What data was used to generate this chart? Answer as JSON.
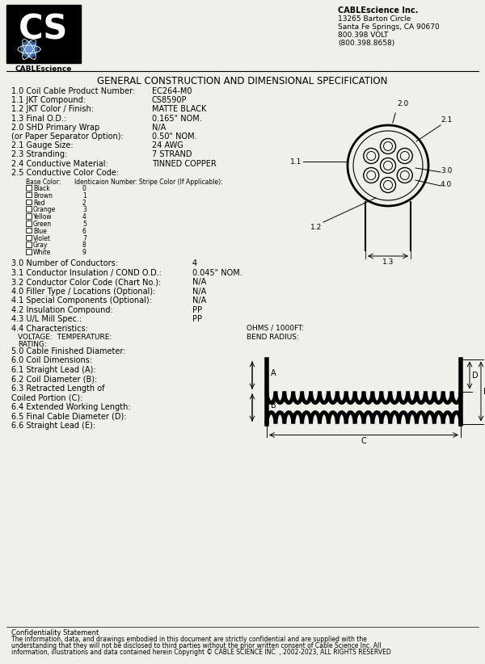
{
  "bg_color": "#f0f0eb",
  "title": "GENERAL CONSTRUCTION AND DIMENSIONAL SPECIFICATION",
  "company_name": "CABLEscience Inc.",
  "company_addr1": "13265 Barton Circle",
  "company_addr2": "Santa Fe Springs, CA 90670",
  "company_phone1": "800.398 VOLT",
  "company_phone2": "(800.398.8658)",
  "spec_rows": [
    [
      "1.0 Coil Cable Product Number:",
      "EC264-M0"
    ],
    [
      "1.1 JKT Compound:",
      "CS8590P"
    ],
    [
      "1.2 JKT Color / Finish:",
      "MATTE BLACK"
    ],
    [
      "1.3 Final O.D.:",
      "0.165\" NOM."
    ],
    [
      "2.0 SHD Primary Wrap",
      "N/A"
    ],
    [
      "(or Paper Separator Option):",
      "0.50\" NOM."
    ],
    [
      "2.1 Gauge Size:",
      "24 AWG"
    ],
    [
      "2.3 Stranding:",
      "7 STRAND"
    ],
    [
      "2.4 Conductive Material:",
      "TINNED COPPER"
    ],
    [
      "2.5 Conductive Color Code:",
      ""
    ]
  ],
  "color_table_header": [
    "Base Color:",
    "Identicaion Number:",
    "Stripe Color (If Applicable):"
  ],
  "color_rows": [
    [
      "Black",
      "0"
    ],
    [
      "Brown",
      "1"
    ],
    [
      "Red",
      "2"
    ],
    [
      "Orange",
      "3"
    ],
    [
      "Yellow",
      "4"
    ],
    [
      "Green",
      "5"
    ],
    [
      "Blue",
      "6"
    ],
    [
      "Violet",
      "7"
    ],
    [
      "Gray",
      "8"
    ],
    [
      "White",
      "9"
    ]
  ],
  "spec_rows2": [
    [
      "3.0 Number of Conductors:",
      "4"
    ],
    [
      "3.1 Conductor Insulation / COND O.D.:",
      "0.045\" NOM."
    ],
    [
      "3.2 Conductor Color Code (Chart No.):",
      "N/A"
    ],
    [
      "4.0 Filler Type / Locations (Optional):",
      "N/A"
    ],
    [
      "4.1 Special Components (Optional):",
      "N/A"
    ],
    [
      "4.2 Insulation Compound:",
      "PP"
    ],
    [
      "4.3 U/L Mill Spec.:",
      "PP"
    ]
  ],
  "char_label1": "4.4 Characteristics:",
  "char_label2": "VOLTAGE:  TEMPERATURE:",
  "char_label3": "RATING:",
  "ohms_label": "OHMS / 1000FT:",
  "bend_label": "BEND RADIUS:",
  "spec_rows3": [
    [
      "5.0 Cable Finished Diameter:",
      ""
    ],
    [
      "6.0 Coil Dimensions:",
      ""
    ],
    [
      "6.1 Straight Lead (A):",
      ""
    ],
    [
      "6.2 Coil Diameter (B):",
      ""
    ],
    [
      "6.3 Retracted Length of",
      ""
    ],
    [
      "Coiled Portion (C):",
      ""
    ],
    [
      "6.4 Extended Working Length:",
      ""
    ],
    [
      "6.5 Final Cable Diameter (D):",
      ""
    ],
    [
      "6.6 Straight Lead (E):",
      ""
    ]
  ],
  "confidentiality": "Confidentiality Statement",
  "conf_text1": "The information, data, and drawings embodied in this document are strictly confidential and are supplied with the",
  "conf_text2": "understanding that they will not be disclosed to third parties without the prior written consent of Cable Science Inc. All",
  "conf_text3": "information, illustrations and data contained herein Copyright © CABLE SCIENCE INC. , 2002-2023, ALL RIGHTS RESERVED"
}
